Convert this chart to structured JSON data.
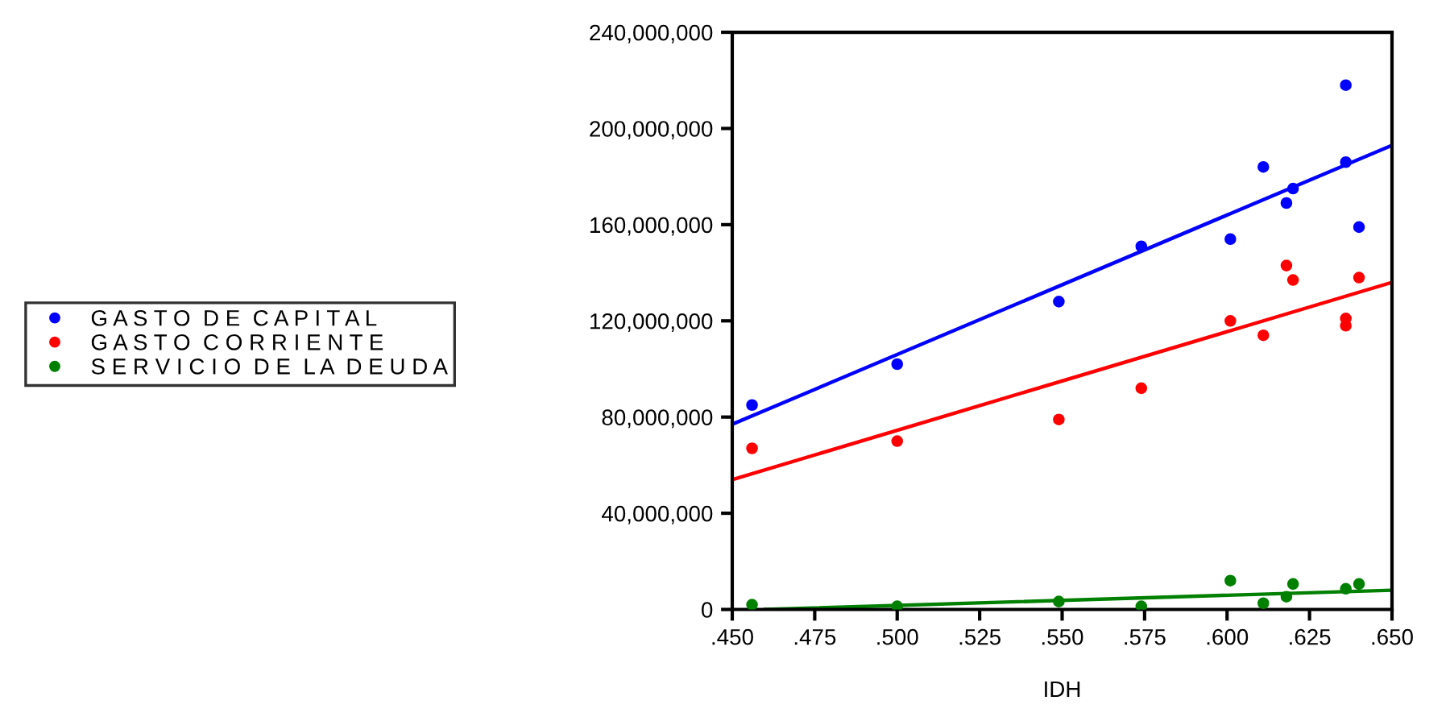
{
  "chart_data": {
    "type": "scatter",
    "xlabel": "IDH",
    "xlim": [
      0.45,
      0.65
    ],
    "xticks": [
      {
        "value": 0.45,
        "label": ".450"
      },
      {
        "value": 0.475,
        "label": ".475"
      },
      {
        "value": 0.5,
        "label": ".500"
      },
      {
        "value": 0.525,
        "label": ".525"
      },
      {
        "value": 0.55,
        "label": ".550"
      },
      {
        "value": 0.575,
        "label": ".575"
      },
      {
        "value": 0.6,
        "label": ".600"
      },
      {
        "value": 0.625,
        "label": ".625"
      },
      {
        "value": 0.65,
        "label": ".650"
      }
    ],
    "ylim": [
      0,
      240000000
    ],
    "yticks": [
      {
        "value": 0,
        "label": "0"
      },
      {
        "value": 40000000,
        "label": "40,000,000"
      },
      {
        "value": 80000000,
        "label": "80,000,000"
      },
      {
        "value": 120000000,
        "label": "120,000,000"
      },
      {
        "value": 160000000,
        "label": "160,000,000"
      },
      {
        "value": 200000000,
        "label": "200,000,000"
      },
      {
        "value": 240000000,
        "label": "240,000,000"
      }
    ],
    "grid": false,
    "legend": "left",
    "series": [
      {
        "name": "G A S T O  D E  C A P I T A L",
        "color": "#0000ff",
        "marker": "circle",
        "x": [
          0.456,
          0.5,
          0.549,
          0.574,
          0.601,
          0.611,
          0.618,
          0.62,
          0.636,
          0.636,
          0.64
        ],
        "values": [
          85000000,
          102000000,
          128000000,
          151000000,
          154000000,
          184000000,
          169000000,
          175000000,
          218000000,
          186000000,
          159000000
        ]
      },
      {
        "name": "G A S T O  C O R R I E N T E",
        "color": "#ff0000",
        "marker": "circle",
        "x": [
          0.456,
          0.5,
          0.549,
          0.574,
          0.601,
          0.611,
          0.618,
          0.62,
          0.636,
          0.636,
          0.64
        ],
        "values": [
          67000000,
          70000000,
          79000000,
          92000000,
          120000000,
          114000000,
          143000000,
          137000000,
          121000000,
          118000000,
          138000000
        ]
      },
      {
        "name": "S E R V I C I O  D E  L A  D E U D A",
        "color": "#008000",
        "marker": "circle",
        "x": [
          0.456,
          0.5,
          0.549,
          0.574,
          0.601,
          0.611,
          0.618,
          0.62,
          0.636,
          0.64
        ],
        "values": [
          2000000,
          1300000,
          3300000,
          1300000,
          12000000,
          2600000,
          5300000,
          10600000,
          8600000,
          10600000
        ]
      },
      {
        "type": "line",
        "marker": "none",
        "color": "#0000ff",
        "x": [
          0.45,
          0.65
        ],
        "values": [
          77000000,
          193000000
        ]
      },
      {
        "type": "line",
        "marker": "none",
        "color": "#ff0000",
        "x": [
          0.45,
          0.65
        ],
        "values": [
          54000000,
          136000000
        ]
      },
      {
        "type": "line",
        "marker": "none",
        "color": "#008000",
        "x": [
          0.46,
          0.65
        ],
        "values": [
          0,
          8000000
        ]
      }
    ]
  }
}
